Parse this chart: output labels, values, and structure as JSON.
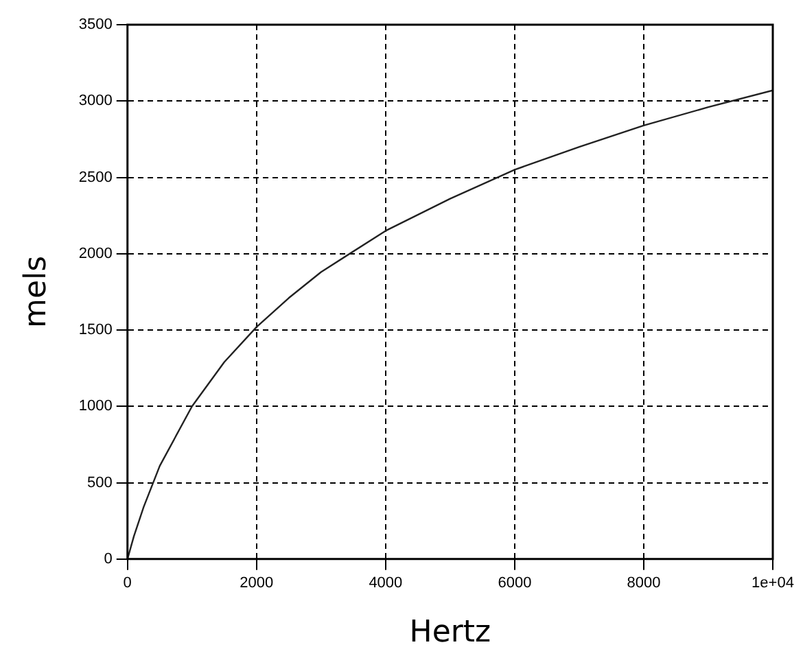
{
  "chart_data": {
    "type": "line",
    "xlabel": "Hertz",
    "ylabel": "mels",
    "x": [
      0,
      100,
      250,
      500,
      1000,
      1500,
      2000,
      2500,
      3000,
      4000,
      5000,
      6000,
      7000,
      8000,
      9000,
      10000
    ],
    "series": [
      {
        "color": "#222222",
        "values": [
          0,
          150,
          340,
          610,
          1000,
          1290,
          1520,
          1710,
          1880,
          2150,
          2360,
          2550,
          2700,
          2840,
          2960,
          3070
        ]
      }
    ],
    "xlim": [
      0,
      10000
    ],
    "xticks": [
      0,
      2000,
      4000,
      6000,
      8000,
      {
        "value": 10000,
        "label": "1e+04"
      }
    ],
    "ylim": [
      0,
      3500
    ],
    "yticks": [
      0,
      500,
      1000,
      1500,
      2000,
      2500,
      3000,
      3500
    ],
    "grid": true,
    "legend": false,
    "marker": "none",
    "line_style": "solid"
  }
}
